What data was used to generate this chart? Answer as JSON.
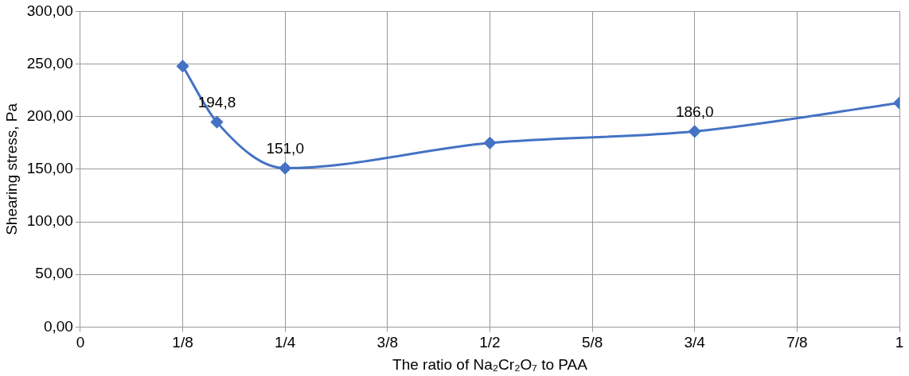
{
  "chart_data": {
    "type": "line",
    "xlabel": "The ratio of Na₂Cr₂O₇ to PAA",
    "ylabel": "Shearing stress, Pa",
    "x": [
      0.125,
      0.1667,
      0.25,
      0.5,
      0.75,
      1
    ],
    "series": [
      {
        "color": "#4472c4",
        "values": [
          248,
          194.8,
          151.0,
          175,
          186.0,
          213
        ],
        "value_labels": [
          null,
          "194,8",
          "151,0",
          null,
          "186,0",
          null
        ]
      }
    ],
    "xlim": [
      0,
      1
    ],
    "xticks": [
      0,
      {
        "value": 0.125,
        "label": "1/8"
      },
      {
        "value": 0.25,
        "label": "1/4"
      },
      {
        "value": 0.375,
        "label": "3/8"
      },
      {
        "value": 0.5,
        "label": "1/2"
      },
      {
        "value": 0.625,
        "label": "5/8"
      },
      {
        "value": 0.75,
        "label": "3/4"
      },
      {
        "value": 0.875,
        "label": "7/8"
      },
      1
    ],
    "ylim": [
      0,
      300
    ],
    "yticks": [
      {
        "value": 0,
        "label": "0,00"
      },
      {
        "value": 50,
        "label": "50,00"
      },
      {
        "value": 100,
        "label": "100,00"
      },
      {
        "value": 150,
        "label": "150,00"
      },
      {
        "value": 200,
        "label": "200,00"
      },
      {
        "value": 250,
        "label": "250,00"
      },
      {
        "value": 300,
        "label": "300,00"
      }
    ],
    "grid": true,
    "legend": false,
    "marker": "diamond",
    "line_style": "solid"
  }
}
